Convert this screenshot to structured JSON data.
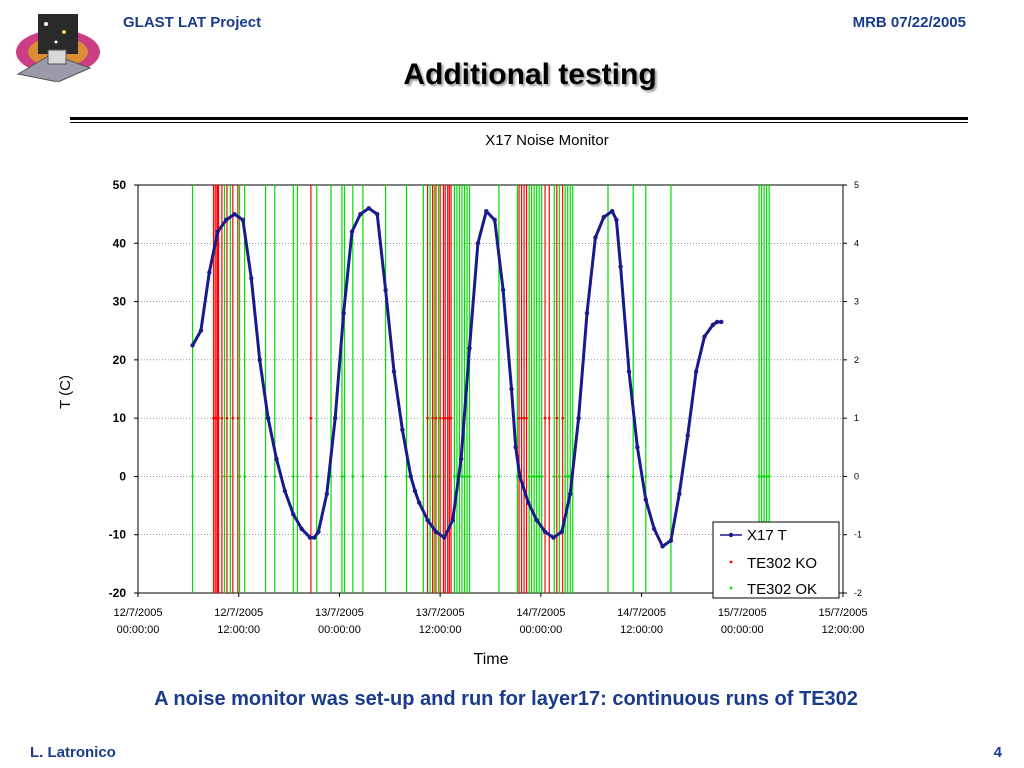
{
  "header": {
    "project": "GLAST LAT Project",
    "meeting": "MRB 07/22/2005"
  },
  "slide_title": "Additional testing",
  "caption": "A noise monitor was set-up and run for layer17: continuous runs of TE302",
  "footer": {
    "author": "L. Latronico",
    "page": "4"
  },
  "logo": {
    "icon": "glast-satellite-logo-icon"
  },
  "chart_data": {
    "type": "line",
    "title": "X17 Noise Monitor",
    "xlabel": "Time",
    "ylabel": "T (C)",
    "ylim": [
      -20,
      50
    ],
    "y_ticks": [
      50,
      40,
      30,
      20,
      10,
      0,
      -10,
      -20
    ],
    "y2lim": [
      -2,
      5
    ],
    "y2_ticks": [
      5,
      4,
      3,
      2,
      1,
      0,
      -1,
      -2
    ],
    "x_ticks": [
      [
        "12/7/2005",
        "00:00:00"
      ],
      [
        "12/7/2005",
        "12:00:00"
      ],
      [
        "13/7/2005",
        "00:00:00"
      ],
      [
        "13/7/2005",
        "12:00:00"
      ],
      [
        "14/7/2005",
        "00:00:00"
      ],
      [
        "14/7/2005",
        "12:00:00"
      ],
      [
        "15/7/2005",
        "00:00:00"
      ],
      [
        "15/7/2005",
        "12:00:00"
      ]
    ],
    "x_unit": "hours since 12/7/2005 00:00",
    "xlim": [
      0,
      84
    ],
    "grid": true,
    "legend_position": "bottom-right",
    "colors": {
      "temperature": "#1a1a8c",
      "ko": "#ff0000",
      "ok": "#00dd00"
    },
    "series": [
      {
        "name": "X17 T",
        "x": [
          6.5,
          7.5,
          8.5,
          9.5,
          10.5,
          11.5,
          12.5,
          13.5,
          14.5,
          15.5,
          16.5,
          17.5,
          18.5,
          19.5,
          20.5,
          21.0,
          21.5,
          22.5,
          23.5,
          24.5,
          25.5,
          26.5,
          27.5,
          28.5,
          29.5,
          30.5,
          31.5,
          32.5,
          33.0,
          33.5,
          34.5,
          35.5,
          36.5,
          37.5,
          38.5,
          39.5,
          40.5,
          41.5,
          42.5,
          43.5,
          44.5,
          45.0,
          45.5,
          46.5,
          47.5,
          48.5,
          49.5,
          50.5,
          51.5,
          52.5,
          53.5,
          54.5,
          55.5,
          56.5,
          57.0,
          57.5,
          58.5,
          59.5,
          60.5,
          61.5,
          62.5,
          63.5,
          64.5,
          65.5,
          66.5,
          67.5,
          68.5,
          69.0,
          69.5,
          70.5,
          71.5,
          72.5,
          73.5,
          74.5,
          75.5
        ],
        "values": [
          22.5,
          25,
          35,
          42,
          44,
          45,
          44,
          34,
          20,
          10,
          3,
          -2.5,
          -6.5,
          -9,
          -10.5,
          -10.5,
          -9.5,
          -3,
          10,
          28,
          42,
          45,
          46,
          45,
          32,
          18,
          8,
          0,
          -2.5,
          -4.5,
          -7.5,
          -9.5,
          -10.5,
          -7.5,
          3,
          22,
          40,
          45.5,
          44,
          32,
          15,
          5,
          0,
          -4.5,
          -7.5,
          -9.5,
          -10.5,
          -9.5,
          -3,
          10,
          28,
          41,
          44.5,
          45.5,
          44,
          36,
          18,
          5,
          -4,
          -9,
          -12,
          -11,
          -3,
          7,
          18,
          24,
          26,
          26.5,
          26.5,
          null,
          null,
          null,
          null,
          null,
          null
        ]
      },
      {
        "name": "TE302 KO",
        "value": 1,
        "run_times": [
          9.0,
          9.2,
          9.4,
          9.5,
          9.6,
          10.0,
          10.6,
          11.3,
          11.9,
          20.6,
          34.5,
          35.1,
          35.5,
          36.0,
          36.4,
          36.6,
          36.9,
          37.1,
          37.3,
          45.4,
          45.7,
          46.0,
          46.3,
          48.5,
          49.0,
          49.9,
          50.6
        ],
        "note_ko_axis": "secondary"
      },
      {
        "name": "TE302 OK",
        "value": 0,
        "run_times": [
          6.5,
          10.3,
          11.0,
          12.1,
          12.7,
          15.2,
          16.3,
          18.5,
          19.0,
          21.3,
          23.0,
          24.3,
          24.6,
          25.6,
          26.8,
          29.5,
          32.0,
          34.0,
          34.8,
          35.3,
          35.8,
          37.7,
          38.0,
          38.3,
          38.6,
          38.9,
          39.2,
          39.5,
          43.0,
          45.2,
          46.6,
          46.9,
          47.2,
          47.5,
          47.8,
          48.1,
          49.6,
          50.2,
          50.9,
          51.2,
          51.5,
          51.8,
          56.0,
          59.0,
          60.5,
          63.5,
          74.0,
          74.3,
          74.6,
          74.9,
          75.2
        ]
      }
    ]
  }
}
